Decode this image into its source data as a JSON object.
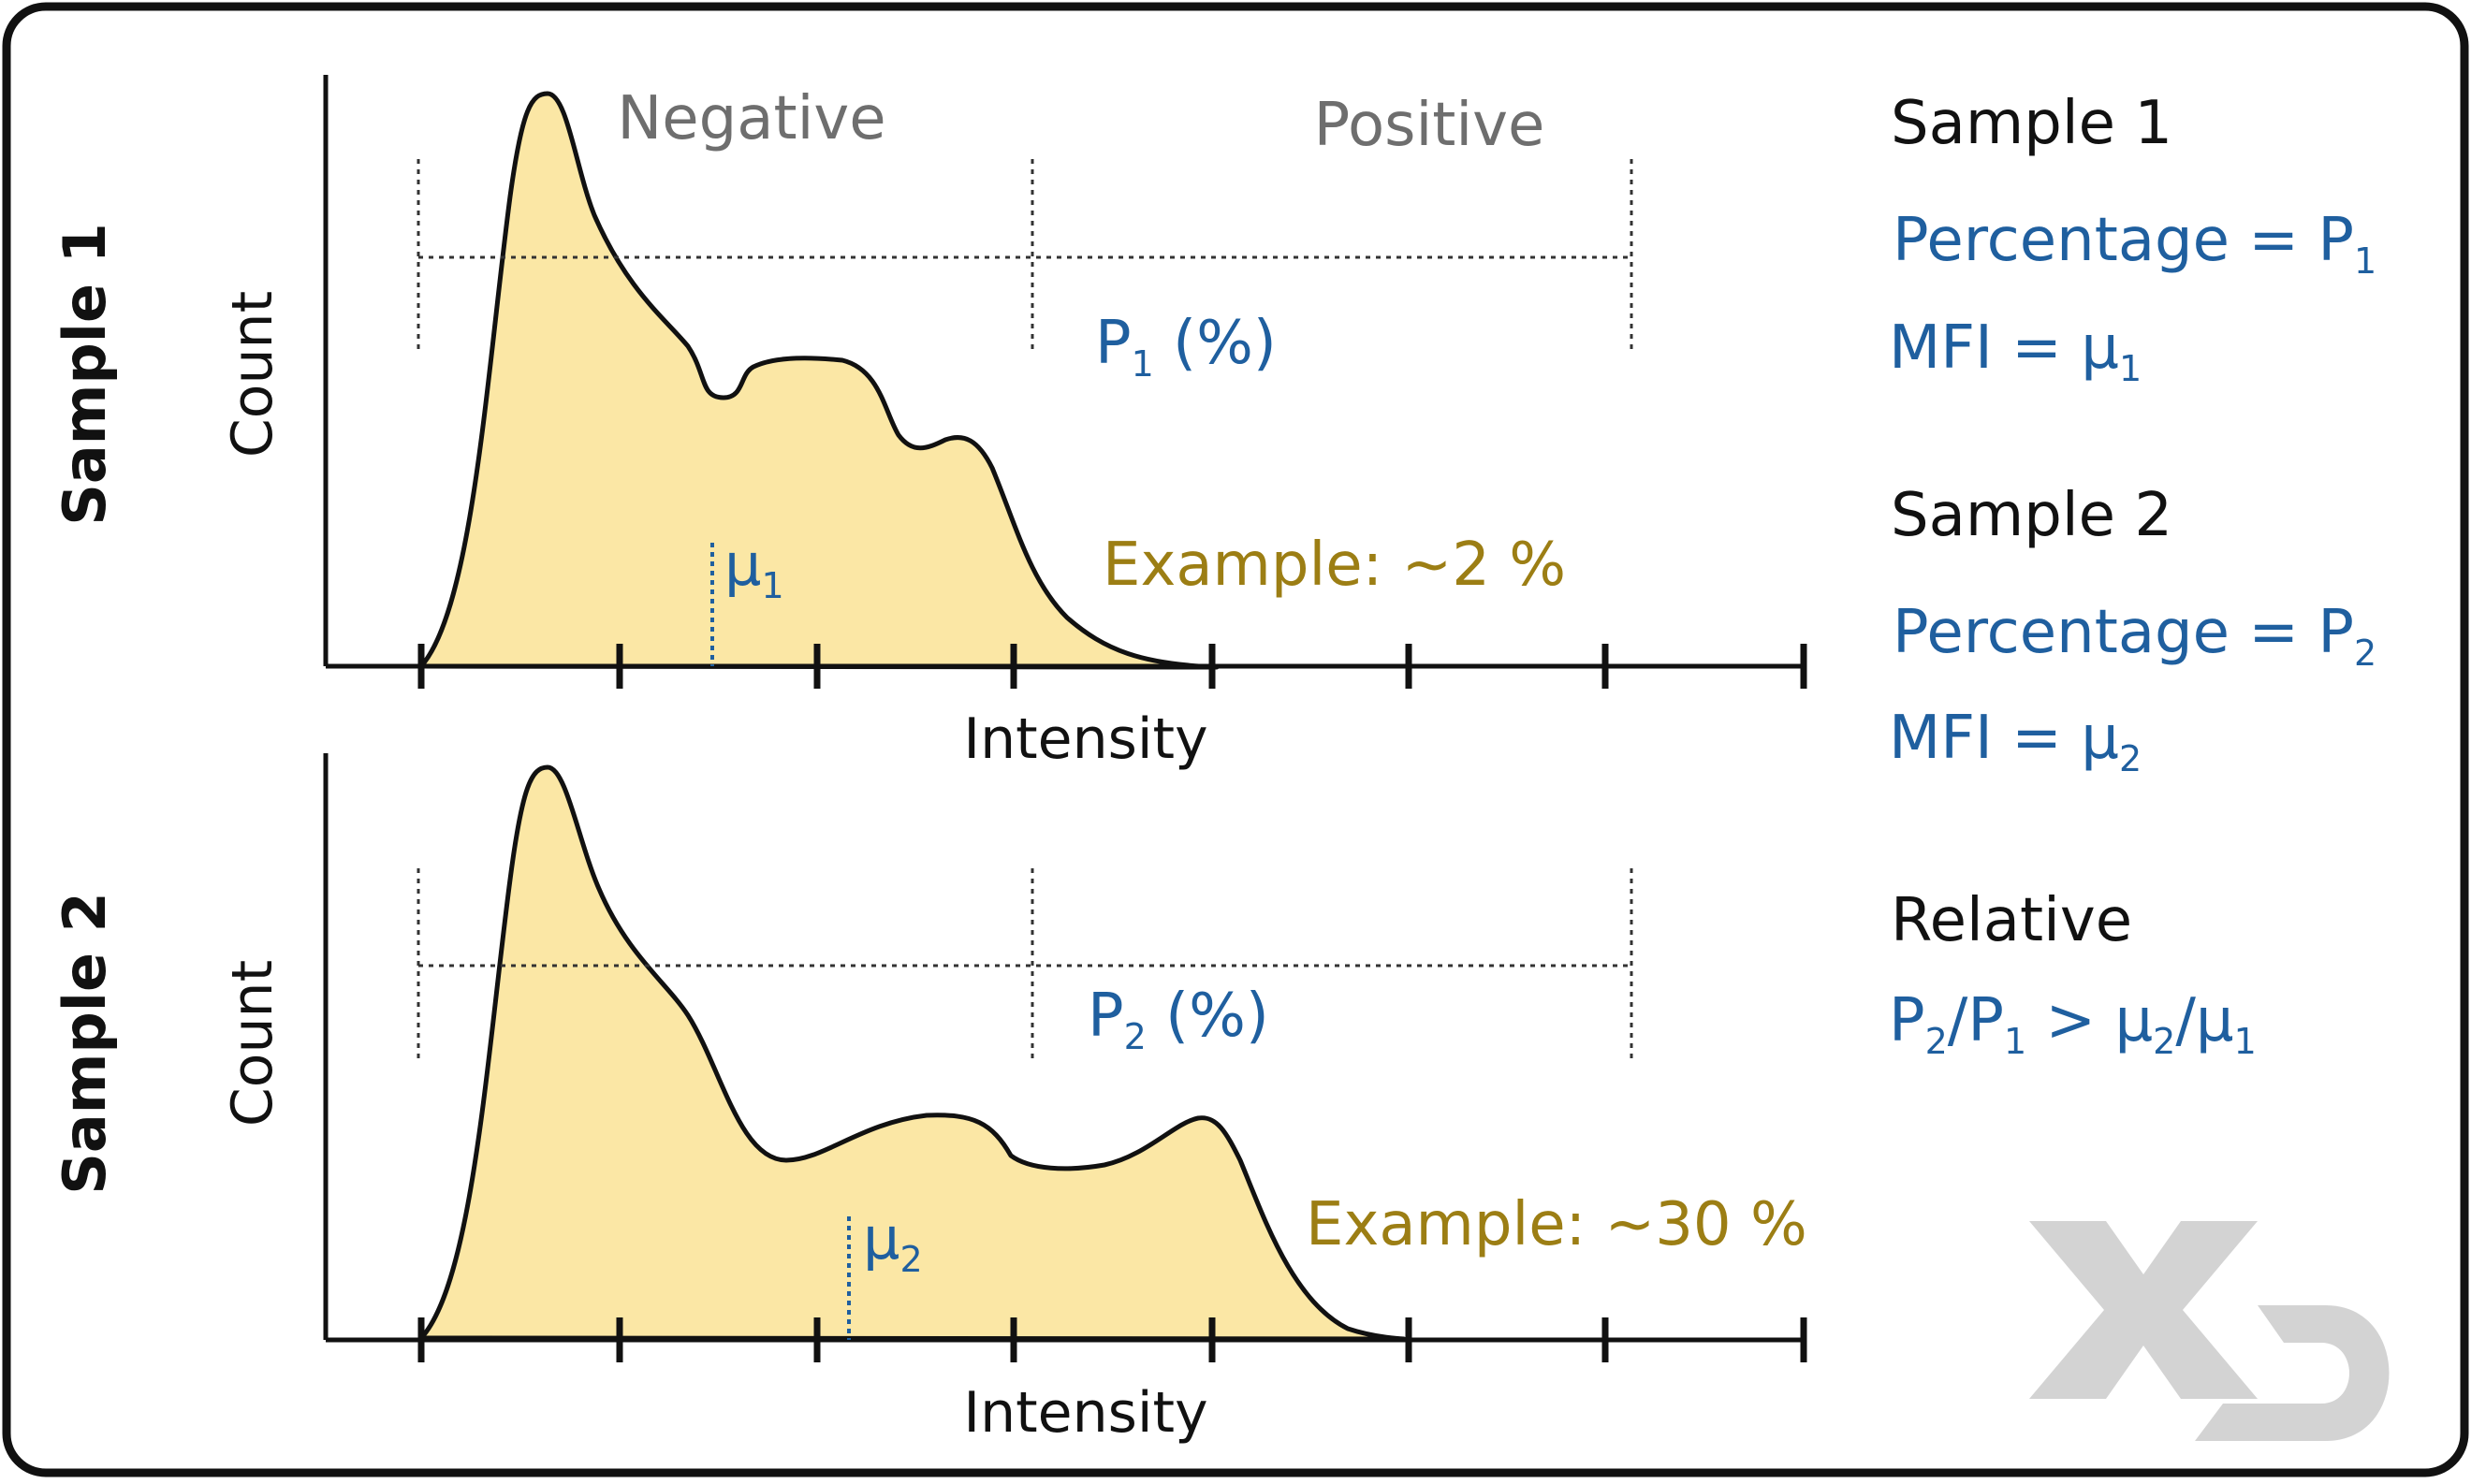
{
  "colors": {
    "curve_fill": "#fbe7a5",
    "curve_stroke": "#111111",
    "blue_text": "#1f5f9f",
    "gold_text": "#9c7e14",
    "gray_text": "#6e6e6e",
    "logo_gray": "#d3d3d3"
  },
  "gate_labels": {
    "negative": "Negative",
    "positive": "Positive"
  },
  "panels": [
    {
      "side_title": "Sample 1",
      "y_axis_label": "Count",
      "x_axis_label": "Intensity",
      "percent_label": {
        "main": "P",
        "sub": "1",
        "suffix": " (%)"
      },
      "mean_label": {
        "main": "μ",
        "sub": "1"
      },
      "example_text": "Example: ~2 %"
    },
    {
      "side_title": "Sample 2",
      "y_axis_label": "Count",
      "x_axis_label": "Intensity",
      "percent_label": {
        "main": "P",
        "sub": "2",
        "suffix": " (%)"
      },
      "mean_label": {
        "main": "μ",
        "sub": "2"
      },
      "example_text": "Example: ~30 %"
    }
  ],
  "summary": {
    "sample1": {
      "title": "Sample 1",
      "percentage": {
        "main": "Percentage = P",
        "sub": "1"
      },
      "mfi": {
        "main": "MFI = μ",
        "sub": "1"
      }
    },
    "sample2": {
      "title": "Sample 2",
      "percentage": {
        "main": "Percentage = P",
        "sub": "2"
      },
      "mfi": {
        "main": "MFI = μ",
        "sub": "2"
      }
    },
    "relative": {
      "title": "Relative",
      "p_num": "P",
      "p_num_sub": "2",
      "p_den": "/P",
      "p_den_sub": "1",
      "op": " > ",
      "mu_num": "μ",
      "mu_num_sub": "2",
      "mu_den": "/μ",
      "mu_den_sub": "1"
    }
  },
  "logo": {
    "icon": "xd-logo-icon"
  }
}
